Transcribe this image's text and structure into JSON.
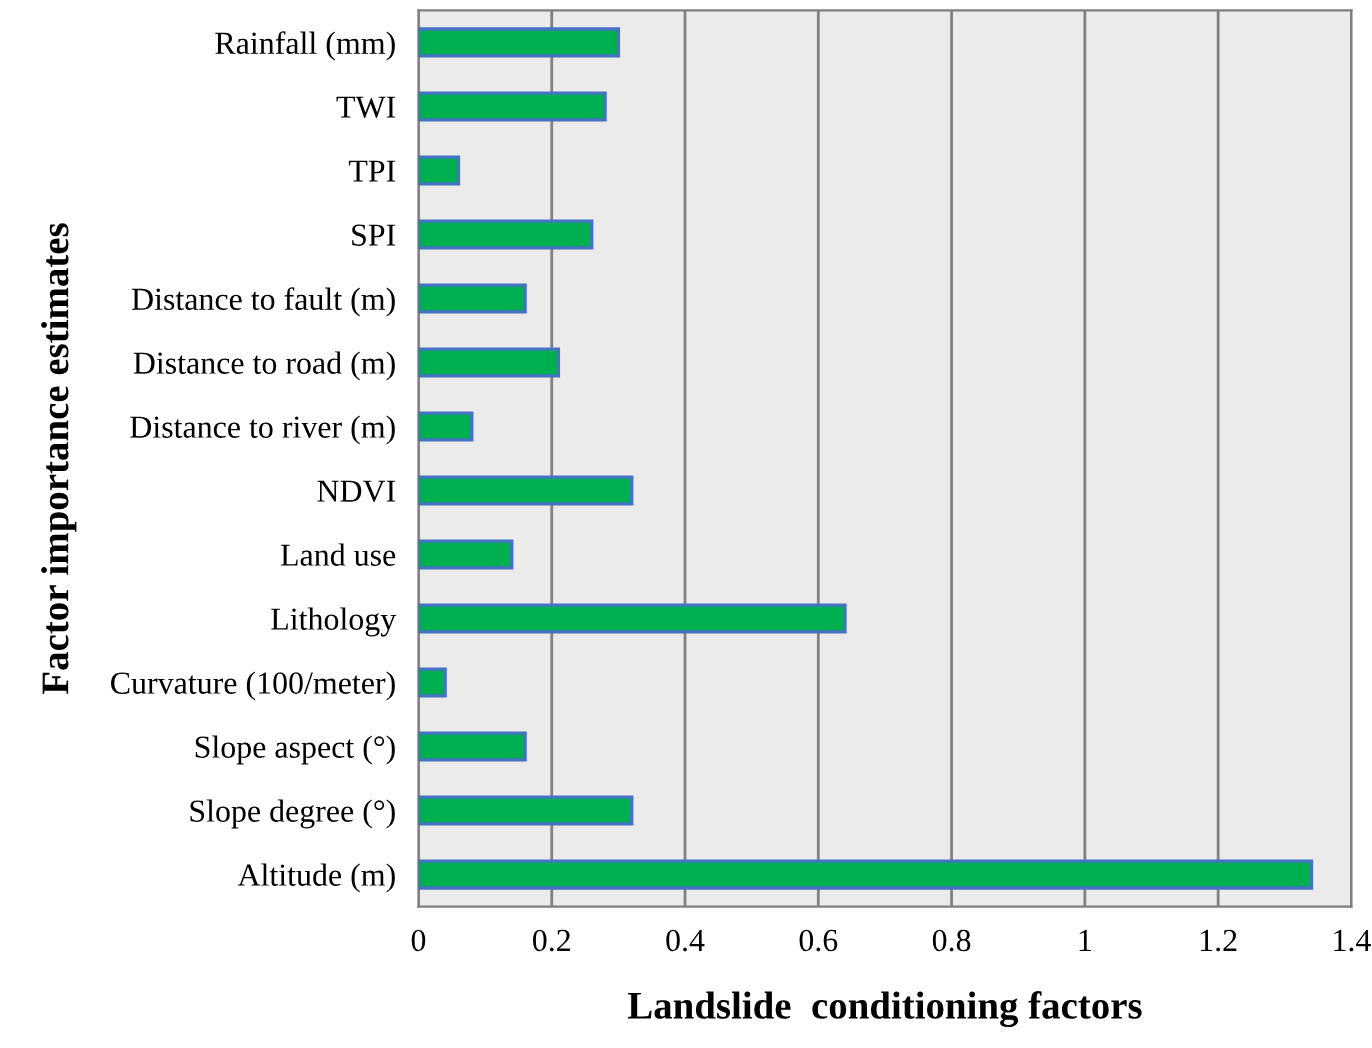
{
  "chart_data": {
    "type": "bar",
    "orientation": "horizontal",
    "categories": [
      "Rainfall (mm)",
      "TWI",
      "TPI",
      "SPI",
      "Distance to fault (m)",
      "Distance to road (m)",
      "Distance to river (m)",
      "NDVI",
      "Land use",
      "Lithology",
      "Curvature (100/meter)",
      "Slope aspect (°)",
      "Slope degree (°)",
      "Altitude (m)"
    ],
    "values": [
      0.3,
      0.28,
      0.06,
      0.26,
      0.16,
      0.21,
      0.08,
      0.32,
      0.14,
      0.64,
      0.04,
      0.16,
      0.32,
      1.34
    ],
    "color": "#00b050",
    "xlim": [
      0,
      1.4
    ],
    "xticks": [
      0,
      0.2,
      0.4,
      0.6,
      0.8,
      1,
      1.2,
      1.4
    ],
    "xlabel": "Landslide  conditioning factors",
    "ylabel": "Factor importance estimates",
    "grid": "x"
  }
}
